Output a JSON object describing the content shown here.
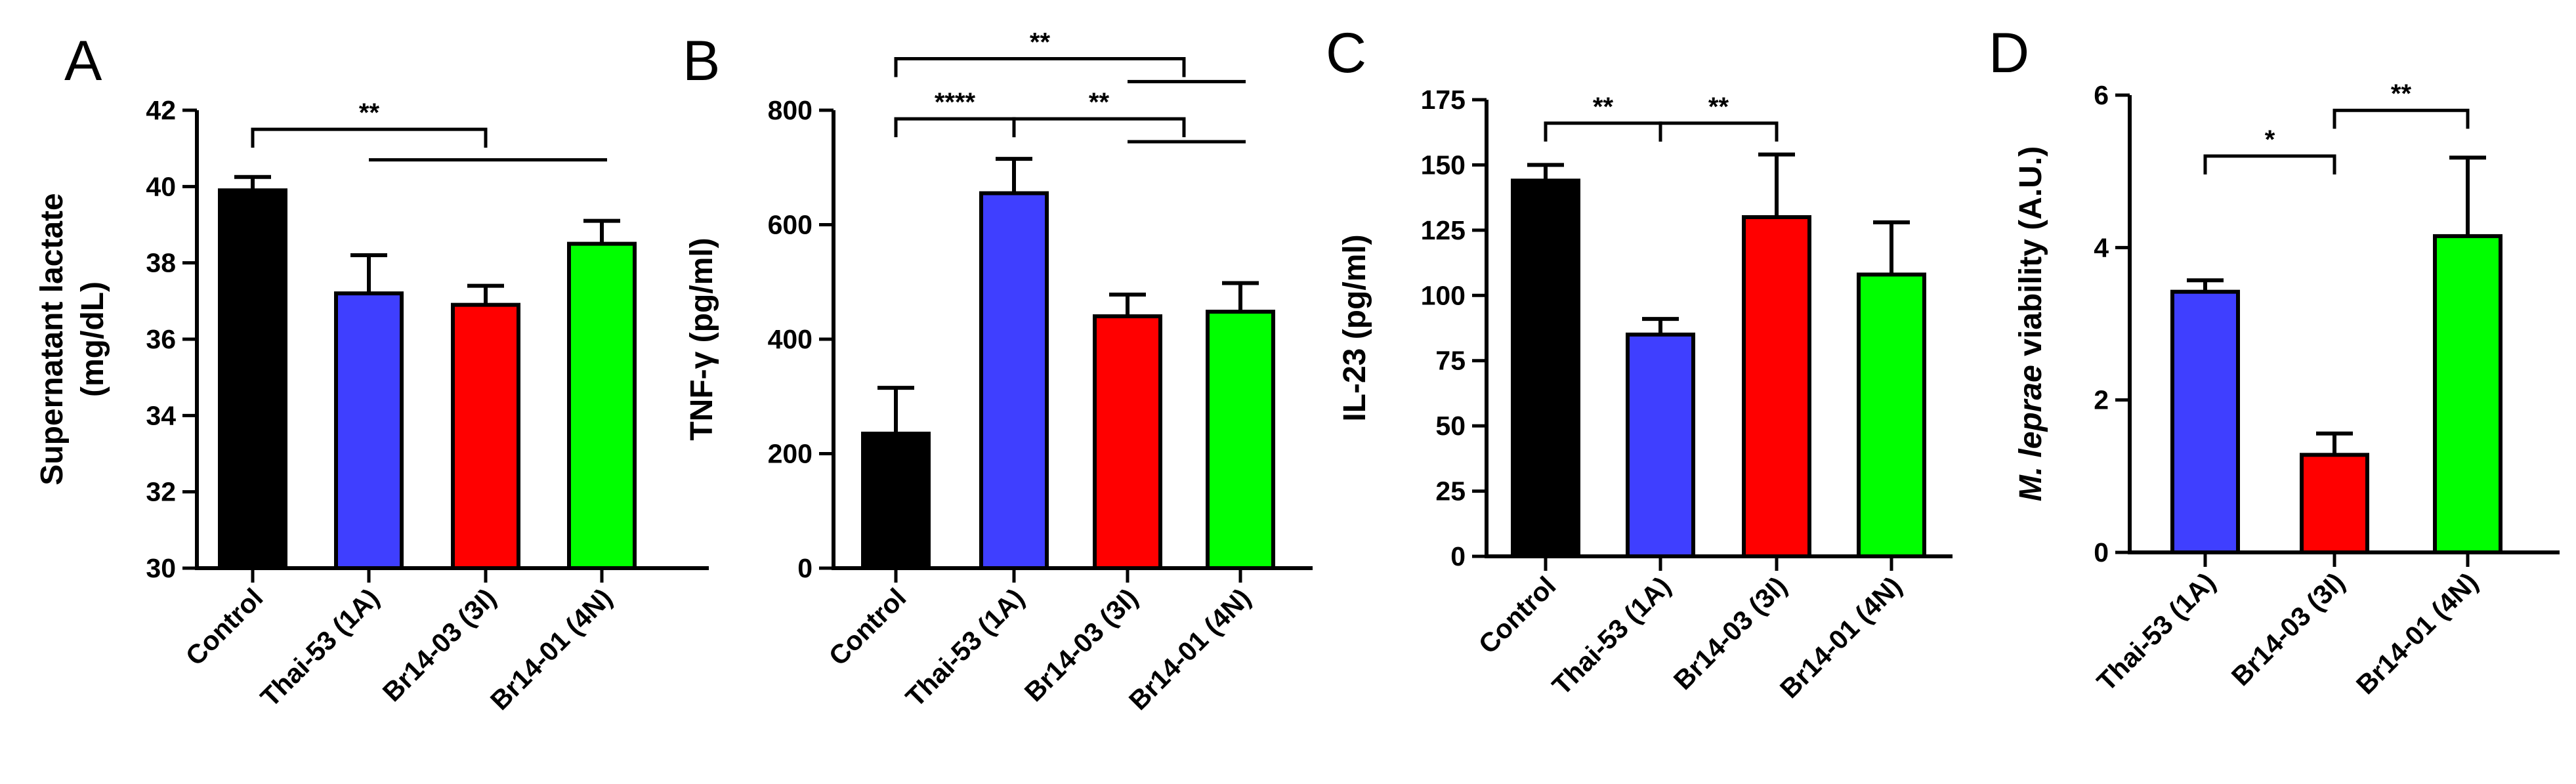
{
  "figure": {
    "colors": {
      "black": "#000000",
      "blue": "#3f3fff",
      "red": "#ff0000",
      "green": "#00ff00"
    }
  },
  "chart_data": [
    {
      "panel": "A",
      "type": "bar",
      "categories": [
        "Control",
        "Thai-53 (1A)",
        "Br14-03 (3I)",
        "Br14-01 (4N)"
      ],
      "values": [
        39.9,
        37.2,
        36.9,
        38.5
      ],
      "errors": [
        0.35,
        1.0,
        0.5,
        0.6
      ],
      "colors": [
        "#000000",
        "#3f3fff",
        "#ff0000",
        "#00ff00"
      ],
      "ylabel_lines": [
        "Supernatant lactate",
        "(mg/dL)"
      ],
      "ylim": [
        30,
        42
      ],
      "yticks": [
        30,
        32,
        34,
        36,
        38,
        40,
        42
      ],
      "ytick_labels": [
        "30",
        "32",
        "34",
        "36",
        "38",
        "40",
        "42"
      ],
      "significance": [
        {
          "label": "**",
          "bracket": {
            "left": 0,
            "right": 2,
            "level": 41.5
          },
          "sub": {
            "from": 1,
            "to": 3,
            "level": 40.7
          }
        }
      ]
    },
    {
      "panel": "B",
      "type": "bar",
      "categories": [
        "Control",
        "Thai-53 (1A)",
        "Br14-03 (3I)",
        "Br14-01 (4N)"
      ],
      "values": [
        235,
        655,
        440,
        448
      ],
      "errors": [
        80,
        60,
        38,
        50
      ],
      "colors": [
        "#000000",
        "#3f3fff",
        "#ff0000",
        "#00ff00"
      ],
      "ylabel_lines": [
        "TNF-γ (pg/ml)"
      ],
      "ylim": [
        0,
        800
      ],
      "yticks": [
        0,
        200,
        400,
        600,
        800
      ],
      "ytick_labels": [
        "0",
        "200",
        "400",
        "600",
        "800"
      ],
      "significance": [
        {
          "label": "****",
          "bracket": {
            "left": 0,
            "right": 1,
            "level": 785
          }
        },
        {
          "label": "**",
          "bracket": {
            "left": 1,
            "right": 2.5,
            "level": 785
          },
          "sub": {
            "from": 2,
            "to": 3,
            "level": 745
          }
        },
        {
          "label": "**",
          "bracket": {
            "left": 0,
            "right": 2.5,
            "level": 890
          },
          "sub": {
            "from": 2,
            "to": 3,
            "level": 850
          }
        }
      ]
    },
    {
      "panel": "C",
      "type": "bar",
      "categories": [
        "Control",
        "Thai-53 (1A)",
        "Br14-03 (3I)",
        "Br14-01 (4N)"
      ],
      "values": [
        144,
        85,
        130,
        108
      ],
      "errors": [
        6,
        6,
        24,
        20
      ],
      "colors": [
        "#000000",
        "#3f3fff",
        "#ff0000",
        "#00ff00"
      ],
      "ylabel_lines": [
        "IL-23 (pg/ml)"
      ],
      "ylim": [
        0,
        175
      ],
      "yticks": [
        0,
        25,
        50,
        75,
        100,
        125,
        150,
        175
      ],
      "ytick_labels": [
        "0",
        "25",
        "50",
        "75",
        "100",
        "125",
        "150",
        "175"
      ],
      "significance": [
        {
          "label": "**",
          "bracket": {
            "left": 0,
            "right": 1,
            "level": 166
          }
        },
        {
          "label": "**",
          "bracket": {
            "left": 1,
            "right": 2,
            "level": 166
          }
        }
      ]
    },
    {
      "panel": "D",
      "type": "bar",
      "categories": [
        "Thai-53 (1A)",
        "Br14-03 (3I)",
        "Br14-01 (4N)"
      ],
      "values": [
        3.42,
        1.28,
        4.15
      ],
      "errors": [
        0.15,
        0.28,
        1.03
      ],
      "colors": [
        "#3f3fff",
        "#ff0000",
        "#00ff00"
      ],
      "ylabel_italic": "M. leprae",
      "ylabel_rest": " viability (A.U.)",
      "ylim": [
        0,
        6
      ],
      "yticks": [
        0,
        2,
        4,
        6
      ],
      "ytick_labels": [
        "0",
        "2",
        "4",
        "6"
      ],
      "significance": [
        {
          "label": "*",
          "bracket": {
            "left": 0,
            "right": 1,
            "level": 5.2
          }
        },
        {
          "label": "**",
          "bracket": {
            "left": 1,
            "right": 2,
            "level": 5.8
          }
        }
      ]
    }
  ]
}
